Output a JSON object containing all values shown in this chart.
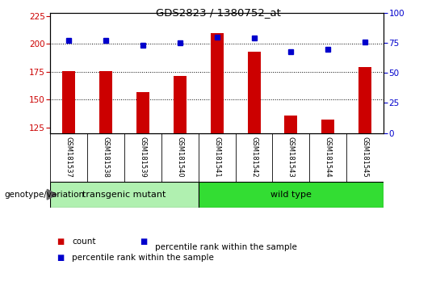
{
  "title": "GDS2823 / 1380752_at",
  "samples": [
    "GSM181537",
    "GSM181538",
    "GSM181539",
    "GSM181540",
    "GSM181541",
    "GSM181542",
    "GSM181543",
    "GSM181544",
    "GSM181545"
  ],
  "counts": [
    176,
    176,
    157,
    171,
    210,
    193,
    136,
    132,
    179
  ],
  "percentile_ranks": [
    77,
    77,
    73,
    75,
    80,
    79,
    68,
    70,
    76
  ],
  "bar_color": "#CC0000",
  "dot_color": "#0000CC",
  "ylim_left": [
    120,
    228
  ],
  "ylim_right": [
    0,
    100
  ],
  "yticks_left": [
    125,
    150,
    175,
    200,
    225
  ],
  "yticks_right": [
    0,
    25,
    50,
    75,
    100
  ],
  "grid_values": [
    150,
    175,
    200
  ],
  "tick_area_bg": "#c8c8c8",
  "group_transgenic_color": "#b0f0b0",
  "group_wildtype_color": "#33dd33",
  "legend_count_label": "count",
  "legend_pct_label": "percentile rank within the sample",
  "genotype_label": "genotype/variation",
  "bar_width": 0.35
}
